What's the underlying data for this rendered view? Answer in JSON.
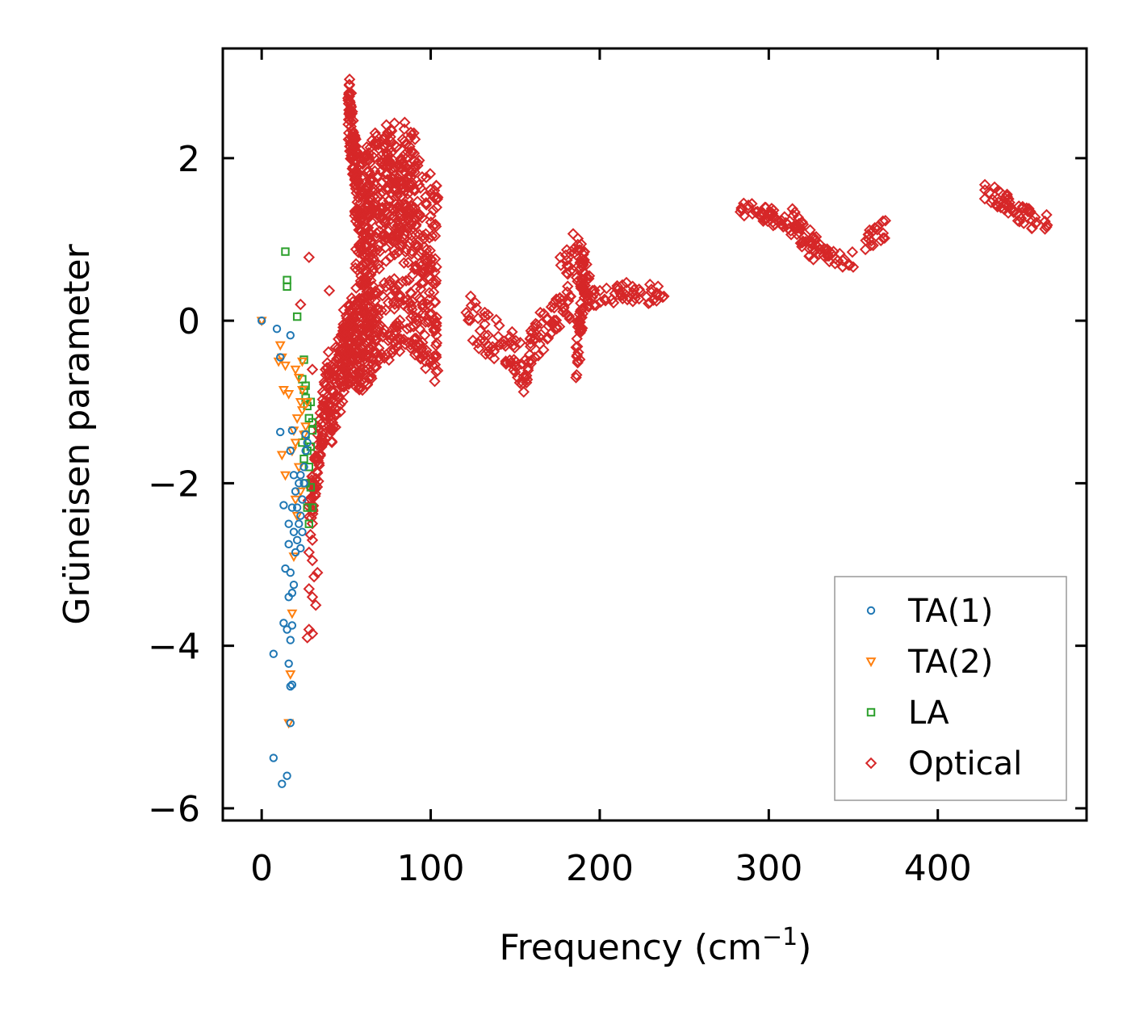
{
  "chart_data": {
    "type": "scatter",
    "title": "",
    "xlabel": "Frequency (cm",
    "xlabel_sup": "−1",
    "xlabel_close": ")",
    "ylabel": "Grüneisen parameter",
    "xlim": [
      -23,
      488
    ],
    "ylim": [
      -6.15,
      3.35
    ],
    "xticks": [
      0,
      100,
      200,
      300,
      400
    ],
    "xtick_labels": [
      "0",
      "100",
      "200",
      "300",
      "400"
    ],
    "yticks": [
      -6,
      -4,
      -2,
      0,
      2
    ],
    "ytick_labels": [
      "−6",
      "−4",
      "−2",
      "0",
      "2"
    ],
    "grid": false,
    "legend_position": "lower-right",
    "series": [
      {
        "name": "TA(1)",
        "marker": "circle",
        "color": "#1f77b4",
        "points": [
          [
            0,
            0
          ],
          [
            9,
            -0.1
          ],
          [
            11,
            -0.45
          ],
          [
            17,
            -0.18
          ],
          [
            11,
            -1.37
          ],
          [
            18,
            -1.35
          ],
          [
            13,
            -2.27
          ],
          [
            17,
            -1.6
          ],
          [
            19,
            -1.9
          ],
          [
            20,
            -2.1
          ],
          [
            21,
            -2.3
          ],
          [
            22,
            -2.5
          ],
          [
            19,
            -2.6
          ],
          [
            21,
            -2.7
          ],
          [
            23,
            -2.4
          ],
          [
            24,
            -2.2
          ],
          [
            25,
            -2.0
          ],
          [
            25,
            -1.8
          ],
          [
            26,
            -1.6
          ],
          [
            26,
            -1.4
          ],
          [
            27,
            -1.5
          ],
          [
            23,
            -1.9
          ],
          [
            18,
            -2.3
          ],
          [
            16,
            -2.5
          ],
          [
            16,
            -2.75
          ],
          [
            20,
            -2.85
          ],
          [
            14,
            -3.05
          ],
          [
            17,
            -3.1
          ],
          [
            19,
            -3.25
          ],
          [
            16,
            -3.4
          ],
          [
            18,
            -3.35
          ],
          [
            13,
            -3.72
          ],
          [
            15,
            -3.8
          ],
          [
            18,
            -3.75
          ],
          [
            17,
            -3.93
          ],
          [
            7,
            -4.1
          ],
          [
            16,
            -4.22
          ],
          [
            17,
            -4.5
          ],
          [
            18,
            -4.48
          ],
          [
            17,
            -4.95
          ],
          [
            7,
            -5.38
          ],
          [
            15,
            -5.6
          ],
          [
            12,
            -5.7
          ],
          [
            22,
            -2.0
          ],
          [
            24,
            -2.6
          ],
          [
            23,
            -2.8
          ]
        ]
      },
      {
        "name": "TA(2)",
        "marker": "triangle-down",
        "color": "#ff7f0e",
        "points": [
          [
            0,
            0
          ],
          [
            11,
            -0.3
          ],
          [
            12,
            -0.45
          ],
          [
            14,
            -0.55
          ],
          [
            10,
            -0.5
          ],
          [
            13,
            -0.85
          ],
          [
            16,
            -0.9
          ],
          [
            20,
            -0.6
          ],
          [
            22,
            -0.7
          ],
          [
            24,
            -0.5
          ],
          [
            23,
            -1.0
          ],
          [
            21,
            -1.2
          ],
          [
            19,
            -1.35
          ],
          [
            18,
            -1.6
          ],
          [
            14,
            -1.9
          ],
          [
            12,
            -1.65
          ],
          [
            20,
            -1.5
          ],
          [
            22,
            -1.8
          ],
          [
            24,
            -1.1
          ],
          [
            25,
            -1.4
          ],
          [
            23,
            -2.1
          ],
          [
            21,
            -2.4
          ],
          [
            19,
            -2.9
          ],
          [
            18,
            -3.6
          ],
          [
            17,
            -4.35
          ],
          [
            16,
            -4.95
          ],
          [
            20,
            -2.2
          ],
          [
            26,
            -1.3
          ],
          [
            27,
            -1.0
          ],
          [
            24,
            -0.85
          ]
        ]
      },
      {
        "name": "LA",
        "marker": "square",
        "color": "#2ca02c",
        "points": [
          [
            14,
            0.85
          ],
          [
            15,
            0.5
          ],
          [
            15,
            0.42
          ],
          [
            21,
            0.05
          ],
          [
            25,
            -0.48
          ],
          [
            24,
            -0.72
          ],
          [
            25,
            -0.85
          ],
          [
            26,
            -0.95
          ],
          [
            27,
            -1.05
          ],
          [
            28,
            -1.2
          ],
          [
            29,
            -1.0
          ],
          [
            30,
            -1.25
          ],
          [
            26,
            -1.4
          ],
          [
            27,
            -1.6
          ],
          [
            28,
            -1.8
          ],
          [
            29,
            -1.55
          ],
          [
            30,
            -1.35
          ],
          [
            26,
            -2.0
          ],
          [
            27,
            -2.3
          ],
          [
            28,
            -2.5
          ],
          [
            30,
            -2.3
          ],
          [
            29,
            -2.05
          ],
          [
            25,
            -1.7
          ],
          [
            24,
            -1.5
          ],
          [
            26,
            -0.8
          ]
        ]
      },
      {
        "name": "Optical",
        "marker": "diamond",
        "color": "#d62728",
        "isolated_points": [
          [
            28,
            0.78
          ],
          [
            23,
            0.2
          ],
          [
            40,
            0.37
          ],
          [
            30,
            -0.6
          ],
          [
            61,
            -0.52
          ],
          [
            72,
            -0.15
          ],
          [
            86,
            -0.1
          ],
          [
            37,
            -0.9
          ],
          [
            30,
            -2.7
          ],
          [
            28,
            -2.85
          ],
          [
            30,
            -2.95
          ],
          [
            31,
            -3.15
          ],
          [
            33,
            -3.1
          ],
          [
            28,
            -3.3
          ],
          [
            30,
            -3.4
          ],
          [
            32,
            -3.5
          ],
          [
            28,
            -3.8
          ],
          [
            27,
            -3.9
          ],
          [
            30,
            -3.85
          ],
          [
            52,
            2.97
          ],
          [
            53,
            2.8
          ],
          [
            121,
            0.1
          ]
        ],
        "segments": [
          {
            "x": [
              28,
              40
            ],
            "y": [
              -2.5,
              -0.6
            ],
            "width": 0.35
          },
          {
            "x": [
              40,
              55
            ],
            "y": [
              -1.1,
              -0.05
            ],
            "width": 0.5
          },
          {
            "x": [
              51,
              53,
              58
            ],
            "y": [
              2.65,
              2.3,
              1.5
            ],
            "width": 0.4
          },
          {
            "x": [
              55,
              70,
              88,
              104
            ],
            "y": [
              0.2,
              0.7,
              0.9,
              0.45
            ],
            "width": 1.25
          },
          {
            "x": [
              58,
              68,
              80,
              92
            ],
            "y": [
              1.2,
              1.55,
              1.75,
              1.5
            ],
            "width": 0.8
          },
          {
            "x": [
              72,
              86
            ],
            "y": [
              2.0,
              1.9
            ],
            "width": 0.3
          },
          {
            "x": [
              48,
              60,
              65
            ],
            "y": [
              -0.4,
              0.1,
              -0.2
            ],
            "width": 0.5
          },
          {
            "x": [
              122,
              135,
              145,
              155,
              160,
              165,
              175,
              183
            ],
            "y": [
              0.05,
              -0.2,
              -0.3,
              -0.6,
              -0.3,
              -0.15,
              0.1,
              0.3
            ],
            "width": 0.28
          },
          {
            "x": [
              176,
              185,
              190,
              194
            ],
            "y": [
              0.65,
              0.8,
              0.6,
              0.5
            ],
            "width": 0.3
          },
          {
            "x": [
              186,
              189,
              191
            ],
            "y": [
              -0.4,
              0.1,
              0.6
            ],
            "width": 0.35
          },
          {
            "x": [
              190,
              200,
              215,
              230,
              240
            ],
            "y": [
              0.2,
              0.3,
              0.35,
              0.33,
              0.3
            ],
            "width": 0.12
          },
          {
            "x": [
              283,
              300,
              320
            ],
            "y": [
              1.4,
              1.3,
              1.05
            ],
            "width": 0.1
          },
          {
            "x": [
              312,
              322,
              328
            ],
            "y": [
              1.25,
              1.0,
              0.9
            ],
            "width": 0.18
          },
          {
            "x": [
              325,
              340,
              350
            ],
            "y": [
              0.95,
              0.75,
              0.75
            ],
            "width": 0.1
          },
          {
            "x": [
              357,
              362,
              369
            ],
            "y": [
              0.95,
              1.05,
              1.12
            ],
            "width": 0.12
          },
          {
            "x": [
              428,
              440,
              450,
              465
            ],
            "y": [
              1.62,
              1.45,
              1.3,
              1.18
            ],
            "width": 0.12
          }
        ]
      }
    ]
  }
}
